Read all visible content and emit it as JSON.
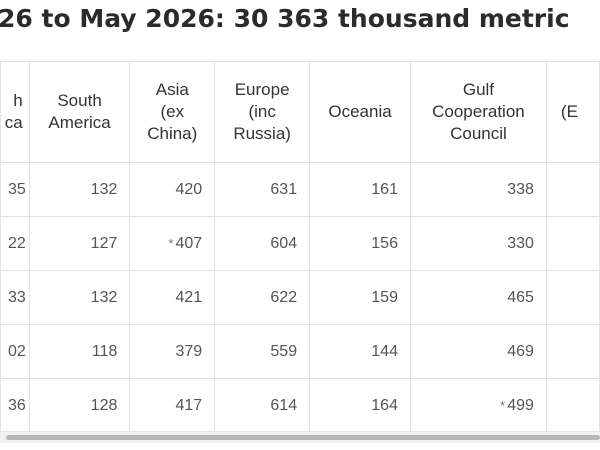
{
  "title": "26 to May 2026: 30 363 thousand metric",
  "table": {
    "headers": [
      {
        "key": "north_america",
        "label": "h\nca",
        "partial": "left"
      },
      {
        "key": "south_america",
        "label": "South\nAmerica"
      },
      {
        "key": "asia",
        "label": "Asia\n(ex\nChina)"
      },
      {
        "key": "europe",
        "label": "Europe\n(inc\nRussia)"
      },
      {
        "key": "oceania",
        "label": "Oceania"
      },
      {
        "key": "gcc",
        "label": "Gulf\nCooperation\nCouncil"
      },
      {
        "key": "next",
        "label": "(E",
        "partial": "right"
      }
    ],
    "rows": [
      {
        "c0": "35",
        "c1": "132",
        "c2": "420",
        "c2_star": "",
        "c3": "631",
        "c4": "161",
        "c5": "338",
        "c5_star": "",
        "c6": ""
      },
      {
        "c0": "22",
        "c1": "127",
        "c2": "407",
        "c2_star": "*",
        "c3": "604",
        "c4": "156",
        "c5": "330",
        "c5_star": "",
        "c6": ""
      },
      {
        "c0": "33",
        "c1": "132",
        "c2": "421",
        "c2_star": "",
        "c3": "622",
        "c4": "159",
        "c5": "465",
        "c5_star": "",
        "c6": ""
      },
      {
        "c0": "02",
        "c1": "118",
        "c2": "379",
        "c2_star": "",
        "c3": "559",
        "c4": "144",
        "c5": "469",
        "c5_star": "",
        "c6": ""
      },
      {
        "c0": "36",
        "c1": "128",
        "c2": "417",
        "c2_star": "",
        "c3": "614",
        "c4": "164",
        "c5": "499",
        "c5_star": "*",
        "c6": ""
      }
    ]
  },
  "scrollbar": {
    "position": 0.99
  }
}
